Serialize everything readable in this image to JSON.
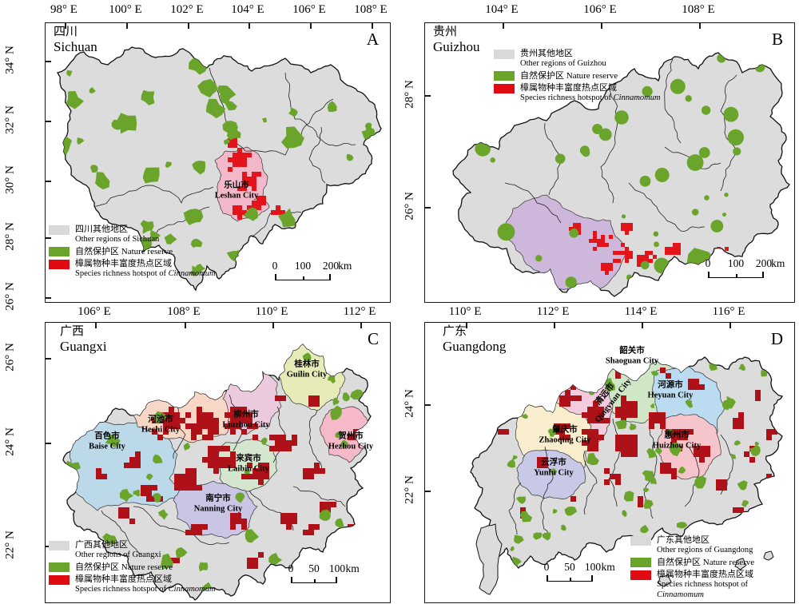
{
  "colors": {
    "other_region": "#d9d9d9",
    "nature_reserve": "#6ba42b",
    "hotspot_legend": "#e00b10",
    "hotspot_map_ab": "#e3151b",
    "hotspot_map_cd": "#ae1117"
  },
  "panels": [
    {
      "letter": "A",
      "region_zh": "四川",
      "region_en": "Sichuan",
      "top_axis": [
        "98° E",
        "100° E",
        "102° E",
        "104° E",
        "106° E",
        "108° E"
      ],
      "left_axis": [
        "34° N",
        "32° N",
        "30° N",
        "28° N",
        "26° N"
      ],
      "legend": {
        "other_zh": "四川其他地区",
        "other_en": "Other regions of Sichuan",
        "reserve": "自然保护区 Nature reserve",
        "hotspot_zh": "樟属物种丰富度热点区域",
        "hotspot_en_prefix": "Species richness hotspot of ",
        "hotspot_en_italic": "Cinnamomum"
      },
      "scalebar": {
        "t0": "0",
        "t1": "100",
        "t2": "200",
        "unit": "km"
      },
      "cities": [
        {
          "zh": "乐山市",
          "en": "Leshan City"
        }
      ]
    },
    {
      "letter": "B",
      "region_zh": "贵州",
      "region_en": "Guizhou",
      "top_axis": [
        "104° E",
        "106° E",
        "108° E"
      ],
      "left_axis": [
        "28° N",
        "26° N"
      ],
      "legend": {
        "other_zh": "贵州其他地区",
        "other_en": "Other regions of Guizhou",
        "reserve": "自然保护区 Nature reserve",
        "hotspot_zh": "樟属物种丰富度热点区域",
        "hotspot_en_prefix": "Species richness hotspot of ",
        "hotspot_en_italic": "Cinnamomum"
      },
      "scalebar": {
        "t0": "0",
        "t1": "100",
        "t2": "200",
        "unit": "km"
      },
      "cities": []
    },
    {
      "letter": "C",
      "region_zh": "广西",
      "region_en": "Guangxi",
      "top_axis": [
        "106° E",
        "108° E",
        "110° E",
        "112° E"
      ],
      "left_axis": [
        "26° N",
        "24° N",
        "22° N"
      ],
      "legend": {
        "other_zh": "广西其他地区",
        "other_en": "Other regions of Guangxi",
        "reserve": "自然保护区 Nature reserve",
        "hotspot_zh": "樟属物种丰富度热点区域",
        "hotspot_en_prefix": "Species richness hotspot of ",
        "hotspot_en_italic": "Cinnamomum"
      },
      "scalebar": {
        "t0": "0",
        "t1": "50",
        "t2": "100",
        "unit": "km"
      },
      "cities": [
        {
          "zh": "百色市",
          "en": "Baise City"
        },
        {
          "zh": "河池市",
          "en": "Hechi City"
        },
        {
          "zh": "柳州市",
          "en": "Liuzhou City"
        },
        {
          "zh": "桂林市",
          "en": "Guilin City"
        },
        {
          "zh": "贺州市",
          "en": "Hezhou City"
        },
        {
          "zh": "来宾市",
          "en": "Laibin City"
        },
        {
          "zh": "南宁市",
          "en": "Nanning City"
        }
      ]
    },
    {
      "letter": "D",
      "region_zh": "广东",
      "region_en": "Guangdong",
      "top_axis": [
        "110° E",
        "112° E",
        "114° E",
        "116° E"
      ],
      "left_axis": [
        "24° N",
        "22° N"
      ],
      "legend": {
        "other_zh": "广东其他地区",
        "other_en": "Other regions of Guangdong",
        "reserve": "自然保护区 Nature reserve",
        "hotspot_zh": "樟属物种丰富度热点区域",
        "hotspot_en_prefix": "Species richness hotspot of ",
        "hotspot_en_italic": "Cinnamomum"
      },
      "scalebar": {
        "t0": "0",
        "t1": "50",
        "t2": "100",
        "unit": "km"
      },
      "cities": [
        {
          "zh": "韶关市",
          "en": "Shaoguan City"
        },
        {
          "zh": "清远市",
          "en": "Qingyuan City"
        },
        {
          "zh": "河源市",
          "en": "Heyuan City"
        },
        {
          "zh": "肇庆市",
          "en": "Zhaoqing City"
        },
        {
          "zh": "惠州市",
          "en": "Huizhou City"
        },
        {
          "zh": "云浮市",
          "en": "Yunfu City"
        }
      ]
    }
  ]
}
